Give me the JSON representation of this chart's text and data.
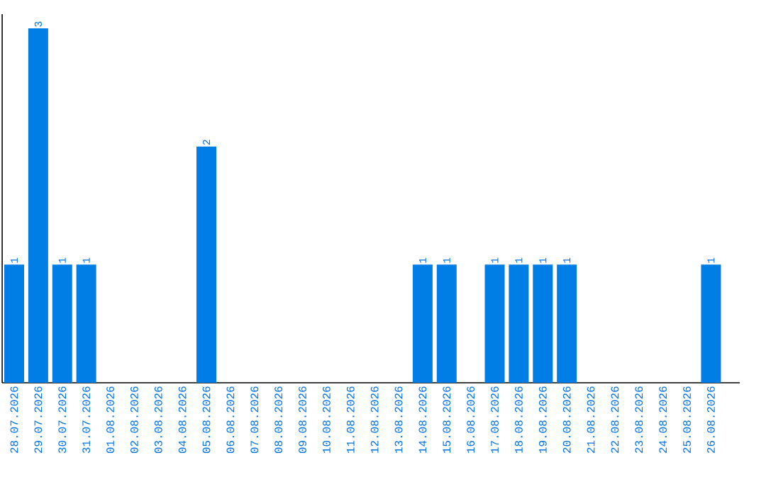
{
  "chart_data": {
    "type": "bar",
    "color": "#007ee5",
    "categories": [
      "28.07.2026",
      "29.07.2026",
      "30.07.2026",
      "31.07.2026",
      "01.08.2026",
      "02.08.2026",
      "03.08.2026",
      "04.08.2026",
      "05.08.2026",
      "06.08.2026",
      "07.08.2026",
      "08.08.2026",
      "09.08.2026",
      "10.08.2026",
      "11.08.2026",
      "12.08.2026",
      "13.08.2026",
      "14.08.2026",
      "15.08.2026",
      "16.08.2026",
      "17.08.2026",
      "18.08.2026",
      "19.08.2026",
      "20.08.2026",
      "21.08.2026",
      "22.08.2026",
      "23.08.2026",
      "24.08.2026",
      "25.08.2026",
      "26.08.2026"
    ],
    "values": [
      1,
      3,
      1,
      1,
      0,
      0,
      0,
      0,
      2,
      0,
      0,
      0,
      0,
      0,
      0,
      0,
      0,
      1,
      1,
      0,
      1,
      1,
      1,
      1,
      0,
      0,
      0,
      0,
      0,
      1
    ],
    "value_labels": [
      "1",
      "3",
      "1",
      "1",
      null,
      null,
      null,
      null,
      "2",
      null,
      null,
      null,
      null,
      null,
      null,
      null,
      null,
      "1",
      "1",
      null,
      "1",
      "1",
      "1",
      "1",
      null,
      null,
      null,
      null,
      null,
      "1"
    ]
  }
}
